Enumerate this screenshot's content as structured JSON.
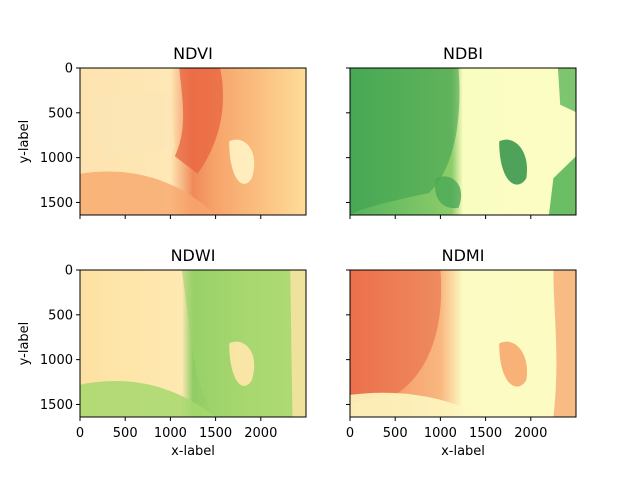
{
  "chart_data": [
    {
      "type": "heatmap",
      "title": "NDVI",
      "colormap": "RdYlGn",
      "xlabel": "",
      "ylabel": "y-label",
      "xlim": [
        0,
        2500
      ],
      "ylim": [
        1640,
        0
      ],
      "xticks": [],
      "yticks": [
        0,
        500,
        1000,
        1500
      ],
      "xticks_positions": [
        0,
        500,
        1000,
        1500,
        2000
      ]
    },
    {
      "type": "heatmap",
      "title": "NDBI",
      "colormap": "RdYlGn",
      "xlabel": "",
      "ylabel": "",
      "xlim": [
        0,
        2500
      ],
      "ylim": [
        1640,
        0
      ],
      "xticks": [],
      "yticks": [],
      "xticks_positions": [
        0,
        500,
        1000,
        1500,
        2000
      ]
    },
    {
      "type": "heatmap",
      "title": "NDWI",
      "colormap": "RdYlGn",
      "xlabel": "x-label",
      "ylabel": "y-label",
      "xlim": [
        0,
        2500
      ],
      "ylim": [
        1640,
        0
      ],
      "xticks": [
        0,
        500,
        1000,
        1500,
        2000
      ],
      "yticks": [
        0,
        500,
        1000,
        1500
      ],
      "xticks_positions": [
        0,
        500,
        1000,
        1500,
        2000
      ]
    },
    {
      "type": "heatmap",
      "title": "NDMI",
      "colormap": "RdYlGn",
      "xlabel": "x-label",
      "ylabel": "",
      "xlim": [
        0,
        2500
      ],
      "ylim": [
        1640,
        0
      ],
      "xticks": [
        0,
        500,
        1000,
        1500,
        2000
      ],
      "yticks": [],
      "xticks_positions": [
        0,
        500,
        1000,
        1500,
        2000
      ]
    }
  ],
  "colors": {
    "deep_red": "#d73027",
    "orange": "#fc8d59",
    "light_orange": "#fdd49e",
    "pale_yellow": "#ffffbf",
    "light_green": "#d9ef8b",
    "green": "#91cf60",
    "deep_green": "#1a9850"
  }
}
